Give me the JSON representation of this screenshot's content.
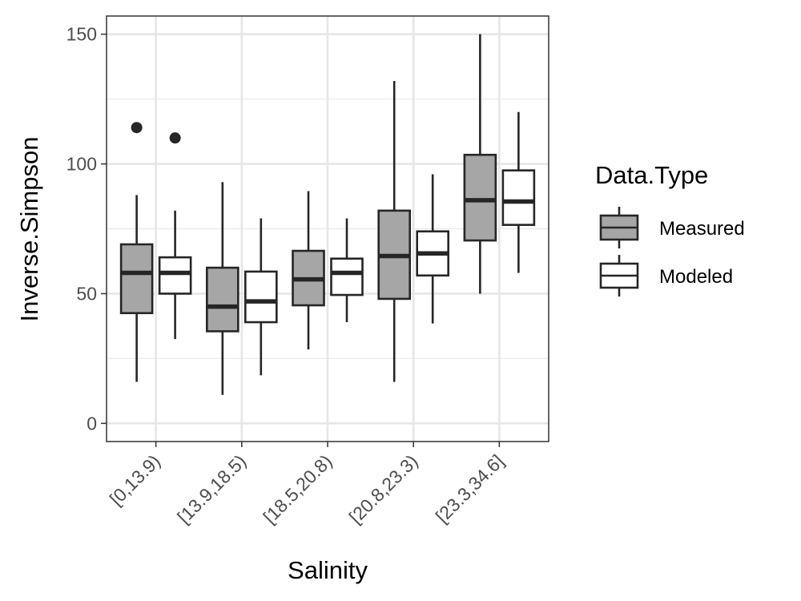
{
  "chart_data": {
    "type": "boxplot",
    "xlabel": "Salinity",
    "ylabel": "Inverse.Simpson",
    "ylim": [
      -7,
      157
    ],
    "yticks": [
      0,
      50,
      100,
      150
    ],
    "ytick_labels": [
      "0",
      "50",
      "100",
      "150"
    ],
    "grid": true,
    "categories": [
      "[0,13.9)",
      "[13.9,18.5)",
      "[18.5,20.8)",
      "[20.8,23.3)",
      "[23.3,34.6]"
    ],
    "legend": {
      "title": "Data.Type",
      "position": "right"
    },
    "series": [
      {
        "name": "Measured",
        "fill": "#a6a6a6",
        "boxes": [
          {
            "min": 16,
            "q1": 42.5,
            "median": 58,
            "q3": 69,
            "max": 88,
            "outliers": [
              114
            ]
          },
          {
            "min": 11,
            "q1": 35.5,
            "median": 45,
            "q3": 60,
            "max": 93,
            "outliers": []
          },
          {
            "min": 28.5,
            "q1": 45.5,
            "median": 55.5,
            "q3": 66.5,
            "max": 89.5,
            "outliers": []
          },
          {
            "min": 16,
            "q1": 48,
            "median": 64.5,
            "q3": 82,
            "max": 132,
            "outliers": []
          },
          {
            "min": 50,
            "q1": 70.5,
            "median": 86,
            "q3": 103.5,
            "max": 150,
            "outliers": []
          }
        ]
      },
      {
        "name": "Modeled",
        "fill": "#ffffff",
        "boxes": [
          {
            "min": 32.5,
            "q1": 50,
            "median": 58,
            "q3": 64,
            "max": 82,
            "outliers": [
              110
            ]
          },
          {
            "min": 18.5,
            "q1": 39,
            "median": 47,
            "q3": 58.5,
            "max": 79,
            "outliers": []
          },
          {
            "min": 39,
            "q1": 49.5,
            "median": 58,
            "q3": 63.5,
            "max": 79,
            "outliers": []
          },
          {
            "min": 38.5,
            "q1": 57,
            "median": 65.5,
            "q3": 74,
            "max": 96,
            "outliers": []
          },
          {
            "min": 58,
            "q1": 76.5,
            "median": 85.5,
            "q3": 97.5,
            "max": 120,
            "outliers": []
          }
        ]
      }
    ]
  }
}
